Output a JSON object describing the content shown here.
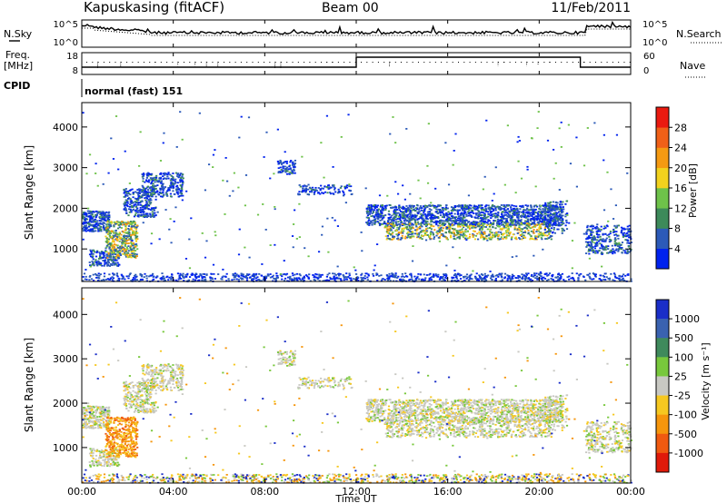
{
  "header": {
    "station": "Kapuskasing (fitACF)",
    "beam": "Beam 00",
    "date": "11/Feb/2011"
  },
  "noise_panel": {
    "left_label": "N.Sky",
    "right_label": "N.Search",
    "ticks": [
      "10^5",
      "10^0"
    ]
  },
  "freq_panel": {
    "left_label_1": "Freq.",
    "left_label_2": "[MHz]",
    "left_ticks": [
      "18",
      "8"
    ],
    "right_label": "Nave",
    "right_ticks": [
      "60",
      "0"
    ]
  },
  "cpid": {
    "label": "CPID",
    "mode": "normal (fast) 151"
  },
  "x_axis": {
    "label": "Time UT",
    "ticks": [
      "00:00",
      "04:00",
      "08:00",
      "12:00",
      "16:00",
      "20:00",
      "00:00"
    ],
    "range_hours": [
      0,
      24
    ]
  },
  "power_colorbar": {
    "label": "Power [dB]",
    "ticks": [
      "4",
      "8",
      "12",
      "16",
      "20",
      "24",
      "28"
    ],
    "colors": [
      "#0022ee",
      "#2c5ab8",
      "#3d8a5a",
      "#6ec24a",
      "#f2d21e",
      "#f59a12",
      "#f06018",
      "#ea1a10"
    ]
  },
  "velocity_colorbar": {
    "label": "Velocity [m s⁻¹]",
    "ticks": [
      "1000",
      "500",
      "100",
      "25",
      "-25",
      "-100",
      "-500",
      "-1000"
    ],
    "colors": [
      "#1a2ec8",
      "#3a62b0",
      "#3f8a5c",
      "#78c83c",
      "#c8c8c2",
      "#f6c820",
      "#f6960c",
      "#f05a10",
      "#e01a0a"
    ]
  },
  "chart_data": [
    {
      "type": "heatmap",
      "name": "power",
      "ylabel": "Slant Range [km]",
      "yticks": [
        "1000",
        "2000",
        "3000",
        "4000"
      ],
      "ylim": [
        200,
        4600
      ],
      "xlim": [
        0,
        24
      ]
    },
    {
      "type": "heatmap",
      "name": "velocity",
      "ylabel": "Slant Range [km]",
      "yticks": [
        "1000",
        "2000",
        "3000",
        "4000"
      ],
      "ylim": [
        200,
        4600
      ],
      "xlim": [
        0,
        24
      ]
    }
  ]
}
